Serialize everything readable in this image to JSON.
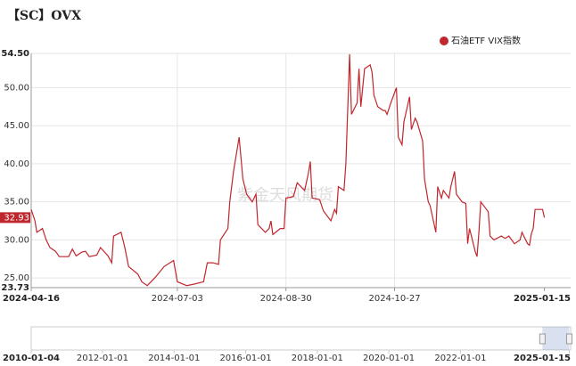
{
  "chart_data": {
    "type": "line",
    "title": "【SC】OVX",
    "watermark": "紫金天风期货",
    "series": [
      {
        "name": "石油ETF VIX指数",
        "color": "#c0262d",
        "x": [
          "2024-04-16",
          "2024-04-18",
          "2024-04-19",
          "2024-04-22",
          "2024-04-24",
          "2024-04-26",
          "2024-04-29",
          "2024-05-01",
          "2024-05-06",
          "2024-05-08",
          "2024-05-10",
          "2024-05-13",
          "2024-05-15",
          "2024-05-17",
          "2024-05-21",
          "2024-05-23",
          "2024-05-27",
          "2024-05-29",
          "2024-05-30",
          "2024-06-03",
          "2024-06-05",
          "2024-06-07",
          "2024-06-12",
          "2024-06-14",
          "2024-06-17",
          "2024-06-21",
          "2024-06-26",
          "2024-07-01",
          "2024-07-03",
          "2024-07-08",
          "2024-07-12",
          "2024-07-17",
          "2024-07-19",
          "2024-07-22",
          "2024-07-25",
          "2024-07-26",
          "2024-07-30",
          "2024-07-31",
          "2024-08-02",
          "2024-08-03",
          "2024-08-05",
          "2024-08-07",
          "2024-08-09",
          "2024-08-12",
          "2024-08-14",
          "2024-08-15",
          "2024-08-19",
          "2024-08-21",
          "2024-08-22",
          "2024-08-23",
          "2024-08-27",
          "2024-08-29",
          "2024-08-30",
          "2024-09-03",
          "2024-09-05",
          "2024-09-09",
          "2024-09-11",
          "2024-09-12",
          "2024-09-13",
          "2024-09-17",
          "2024-09-19",
          "2024-09-23",
          "2024-09-25",
          "2024-09-26",
          "2024-09-27",
          "2024-09-30",
          "2024-10-01",
          "2024-10-03",
          "2024-10-04",
          "2024-10-07",
          "2024-10-08",
          "2024-10-09",
          "2024-10-11",
          "2024-10-14",
          "2024-10-15",
          "2024-10-16",
          "2024-10-18",
          "2024-10-21",
          "2024-10-22",
          "2024-10-23",
          "2024-10-25",
          "2024-10-28",
          "2024-10-29",
          "2024-10-31",
          "2024-11-01",
          "2024-11-04",
          "2024-11-05",
          "2024-11-07",
          "2024-11-08",
          "2024-11-11",
          "2024-11-12",
          "2024-11-14",
          "2024-11-15",
          "2024-11-18",
          "2024-11-19",
          "2024-11-21",
          "2024-11-22",
          "2024-11-25",
          "2024-11-26",
          "2024-11-28",
          "2024-11-29",
          "2024-12-02",
          "2024-12-04",
          "2024-12-05",
          "2024-12-06",
          "2024-12-09",
          "2024-12-10",
          "2024-12-11",
          "2024-12-12",
          "2024-12-16",
          "2024-12-17",
          "2024-12-19",
          "2024-12-23",
          "2024-12-25",
          "2024-12-27",
          "2024-12-30",
          "2025-01-02",
          "2025-01-03",
          "2025-01-06",
          "2025-01-07",
          "2025-01-08",
          "2025-01-09",
          "2025-01-10",
          "2025-01-14",
          "2025-01-15"
        ],
        "values": [
          34.0,
          32.5,
          31.0,
          31.5,
          30.0,
          29.0,
          28.5,
          27.8,
          27.8,
          28.8,
          27.9,
          28.4,
          28.5,
          27.8,
          28.0,
          29.0,
          27.9,
          27.0,
          30.5,
          31.0,
          29.0,
          26.5,
          25.5,
          24.5,
          24.0,
          25.0,
          26.5,
          27.3,
          24.5,
          24.0,
          24.2,
          24.5,
          27.0,
          27.0,
          26.8,
          30.0,
          31.5,
          35.0,
          39.0,
          40.5,
          43.5,
          38.0,
          36.0,
          35.0,
          36.0,
          32.0,
          31.0,
          31.5,
          32.5,
          30.7,
          31.5,
          31.5,
          35.5,
          35.7,
          37.5,
          36.5,
          38.8,
          40.3,
          35.5,
          35.3,
          33.8,
          32.5,
          34.0,
          33.5,
          37.0,
          36.5,
          40.0,
          54.4,
          46.5,
          48.0,
          52.5,
          47.5,
          52.5,
          53.0,
          52.0,
          49.0,
          47.5,
          47.0,
          47.0,
          46.5,
          48.0,
          50.0,
          43.5,
          42.5,
          45.5,
          48.8,
          44.5,
          46.0,
          45.5,
          43.0,
          38.0,
          35.0,
          34.5,
          31.0,
          37.0,
          35.5,
          36.5,
          35.5,
          37.0,
          39.0,
          36.0,
          35.0,
          34.8,
          29.5,
          31.5,
          28.5,
          27.8,
          31.0,
          35.0,
          33.7,
          30.5,
          30.0,
          30.5,
          30.2,
          30.5,
          29.5,
          30.0,
          31.0,
          29.5,
          29.3,
          30.8,
          31.5,
          34.0,
          34.0,
          32.93
        ]
      }
    ],
    "ylim": [
      23.73,
      54.5
    ],
    "yticks": [
      {
        "value": 23.73,
        "label": "23.73"
      },
      {
        "value": 25,
        "label": "25.00"
      },
      {
        "value": 30,
        "label": "30.00"
      },
      {
        "value": 35,
        "label": "35.00"
      },
      {
        "value": 40,
        "label": "40.00"
      },
      {
        "value": 45,
        "label": "45.00"
      },
      {
        "value": 50,
        "label": "50.00"
      },
      {
        "value": 54.5,
        "label": "54.50"
      }
    ],
    "xlim": [
      "2024-04-16",
      "2025-01-29"
    ],
    "xticks": [
      "2024-04-16",
      "2024-07-03",
      "2024-08-30",
      "2024-10-27",
      "2025-01-15"
    ],
    "grid": true,
    "legend": "top-right",
    "navigator": {
      "xlim": [
        "2010-01-04",
        "2025-01-29"
      ],
      "xticks": [
        "2010-01-04",
        "2012-01-01",
        "2014-01-01",
        "2016-01-01",
        "2018-01-01",
        "2020-01-01",
        "2022-01-01",
        "2025-01-15"
      ]
    }
  }
}
